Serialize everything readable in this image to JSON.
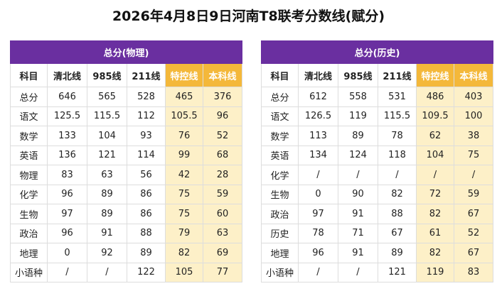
{
  "title": "2026年4月8日9日河南T8联考分数线(赋分)",
  "tables": [
    {
      "title": "总分(物理)",
      "headers": [
        "科目",
        "清北线",
        "985线",
        "211线",
        "特控线",
        "本科线"
      ],
      "rows": [
        [
          "总分",
          "646",
          "565",
          "528",
          "465",
          "376"
        ],
        [
          "语文",
          "125.5",
          "115.5",
          "112",
          "105.5",
          "96"
        ],
        [
          "数学",
          "133",
          "104",
          "93",
          "76",
          "52"
        ],
        [
          "英语",
          "136",
          "121",
          "114",
          "99",
          "68"
        ],
        [
          "物理",
          "83",
          "63",
          "56",
          "42",
          "28"
        ],
        [
          "化学",
          "96",
          "89",
          "86",
          "75",
          "59"
        ],
        [
          "生物",
          "97",
          "89",
          "86",
          "75",
          "60"
        ],
        [
          "政治",
          "96",
          "91",
          "88",
          "79",
          "63"
        ],
        [
          "地理",
          "0",
          "92",
          "89",
          "82",
          "69"
        ],
        [
          "小语种",
          "/",
          "/",
          "122",
          "105",
          "77"
        ]
      ]
    },
    {
      "title": "总分(历史)",
      "headers": [
        "科目",
        "清北线",
        "985线",
        "211线",
        "特控线",
        "本科线"
      ],
      "rows": [
        [
          "总分",
          "612",
          "558",
          "531",
          "486",
          "403"
        ],
        [
          "语文",
          "126.5",
          "119",
          "115.5",
          "109.5",
          "100"
        ],
        [
          "数学",
          "113",
          "89",
          "78",
          "62",
          "38"
        ],
        [
          "英语",
          "134",
          "124",
          "118",
          "104",
          "75"
        ],
        [
          "化学",
          "/",
          "/",
          "/",
          "/",
          "/"
        ],
        [
          "生物",
          "0",
          "90",
          "82",
          "72",
          "59"
        ],
        [
          "政治",
          "97",
          "91",
          "88",
          "82",
          "67"
        ],
        [
          "历史",
          "78",
          "71",
          "67",
          "61",
          "52"
        ],
        [
          "地理",
          "96",
          "91",
          "89",
          "82",
          "67"
        ],
        [
          "小语种",
          "/",
          "/",
          "121",
          "119",
          "83"
        ]
      ]
    }
  ]
}
